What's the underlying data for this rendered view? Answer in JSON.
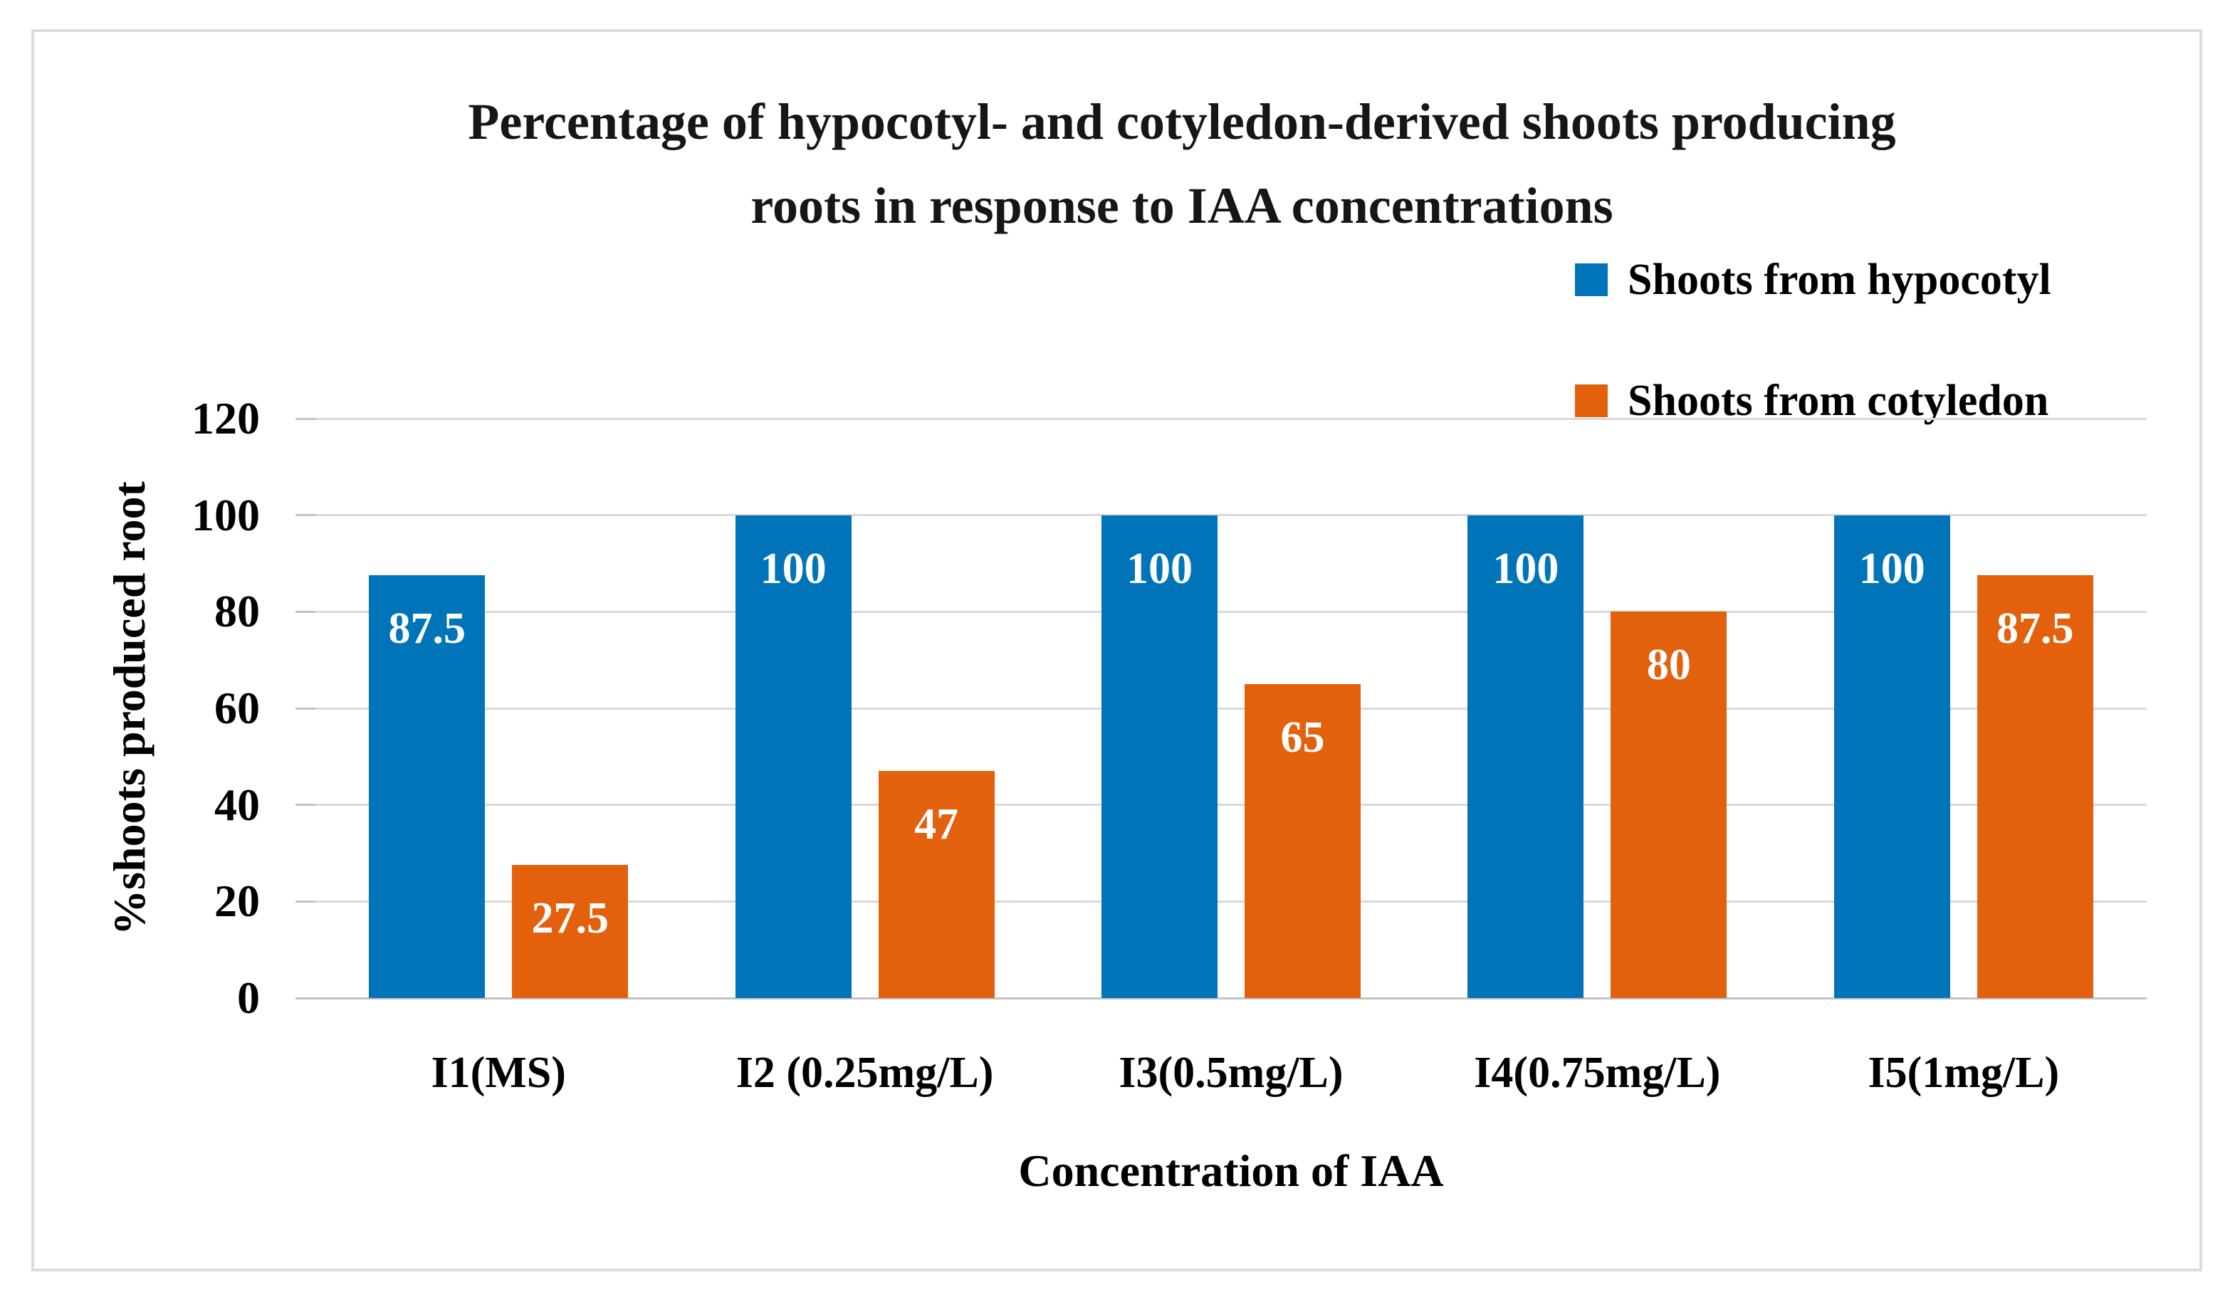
{
  "figure": {
    "background": "#ffffff",
    "frame_border_color": "#dcdcdc"
  },
  "chart_data": {
    "type": "bar",
    "title": "Percentage of hypocotyl- and cotyledon-derived shoots producing roots in response to IAA concentrations",
    "title_lines": [
      "Percentage of hypocotyl- and cotyledon-derived shoots producing",
      "roots in response to IAA concentrations"
    ],
    "xlabel": "Concentration of IAA",
    "ylabel": "%shoots produced root",
    "categories": [
      "I1(MS)",
      "I2 (0.25mg/L)",
      "I3(0.5mg/L)",
      "I4(0.75mg/L)",
      "I5(1mg/L)"
    ],
    "series": [
      {
        "name": "Shoots from hypocotyl",
        "color": "#0074b8",
        "values": [
          87.5,
          100,
          100,
          100,
          100
        ]
      },
      {
        "name": "Shoots from cotyledon",
        "color": "#e3610d",
        "values": [
          27.5,
          47,
          65,
          80,
          87.5
        ]
      }
    ],
    "ylim": [
      0,
      120
    ],
    "yticks": [
      0,
      20,
      40,
      60,
      80,
      100,
      120
    ],
    "grid": true,
    "gridline_color": "#d9d9d9",
    "axis_line_color": "#c3c3c3",
    "data_label_color": "#ffffff",
    "legend_position": "top-right"
  }
}
